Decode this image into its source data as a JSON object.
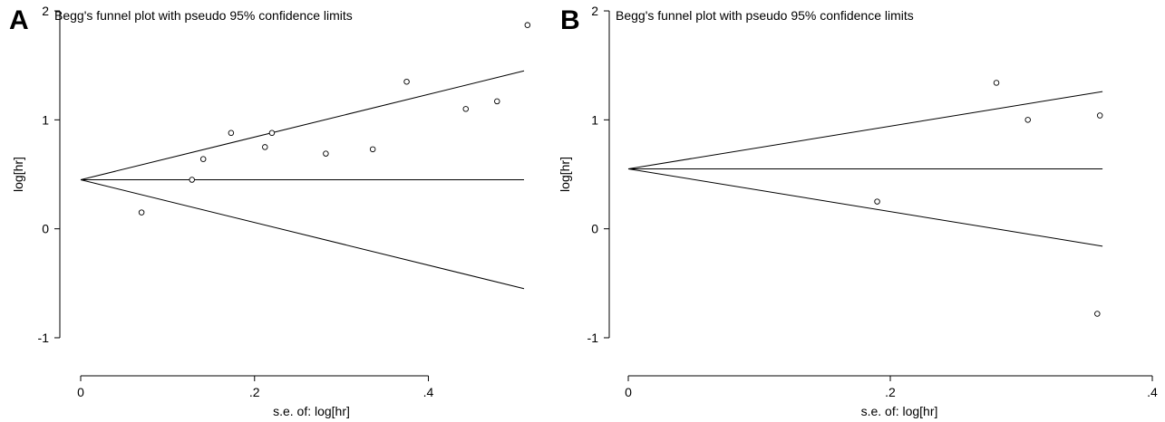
{
  "chart_data": [
    {
      "type": "scatter",
      "panel_label": "A",
      "title": "Begg's funnel plot with pseudo 95% confidence limits",
      "xlabel": "s.e. of: log[hr]",
      "ylabel": "log[hr]",
      "xlim": [
        0,
        0.51
      ],
      "ylim": [
        -1.1,
        2.1
      ],
      "xticks": [
        0,
        0.2,
        0.4
      ],
      "xtick_labels": [
        "0",
        ".2",
        ".4"
      ],
      "yticks": [
        -1,
        0,
        1,
        2
      ],
      "ytick_labels": [
        "-1",
        "0",
        "1",
        "2"
      ],
      "pooled_estimate": 0.45,
      "ci_max_se": 0.51,
      "grid": false,
      "x": [
        0.07,
        0.128,
        0.141,
        0.173,
        0.212,
        0.22,
        0.282,
        0.336,
        0.375,
        0.443,
        0.479,
        0.514
      ],
      "y": [
        0.15,
        0.45,
        0.64,
        0.88,
        0.75,
        0.88,
        0.69,
        0.73,
        1.35,
        1.1,
        1.17,
        1.87
      ]
    },
    {
      "type": "scatter",
      "panel_label": "B",
      "title": "Begg's funnel plot with pseudo 95% confidence limits",
      "xlabel": "s.e. of: log[hr]",
      "ylabel": "log[hr]",
      "xlim": [
        0,
        0.4
      ],
      "ylim": [
        -1.1,
        2.1
      ],
      "xticks": [
        0,
        0.2,
        0.4
      ],
      "xtick_labels": [
        "0",
        ".2",
        ".4"
      ],
      "yticks": [
        -1,
        0,
        1,
        2
      ],
      "ytick_labels": [
        "-1",
        "0",
        "1",
        "2"
      ],
      "pooled_estimate": 0.55,
      "ci_max_se": 0.362,
      "grid": false,
      "x": [
        0.19,
        0.281,
        0.305,
        0.358,
        0.36
      ],
      "y": [
        0.25,
        1.34,
        1.0,
        -0.78,
        1.04
      ]
    }
  ]
}
